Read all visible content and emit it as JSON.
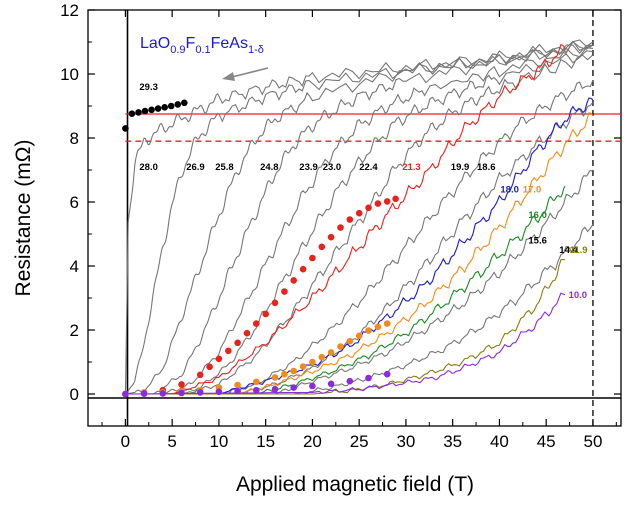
{
  "chart_data": {
    "type": "line",
    "xlabel": "Applied magnetic field (T)",
    "ylabel": "Resistance (mΩ)",
    "xlim": [
      -4,
      53
    ],
    "ylim": [
      -1,
      12
    ],
    "x_ticks": [
      0,
      5,
      10,
      15,
      20,
      25,
      30,
      35,
      40,
      45,
      50
    ],
    "y_ticks": [
      0,
      2,
      4,
      6,
      8,
      10,
      12
    ],
    "sample_label": {
      "main": "LaO",
      "s1": "0.9",
      "mid1": "F",
      "s2": "0.1",
      "mid2": "FeAs",
      "s3": "1-δ"
    },
    "arrow_direction": "left",
    "reference_lines": [
      {
        "kind": "horizontal",
        "y": 8.75,
        "color": "#e8231e",
        "style": "solid"
      },
      {
        "kind": "horizontal",
        "y": 7.9,
        "color": "#e8231e",
        "style": "dashed"
      },
      {
        "kind": "vertical",
        "x": 50,
        "color": "#000000",
        "style": "dashed"
      }
    ],
    "series": [
      {
        "name": "28.0",
        "color": "#777777",
        "label_x": 1.5,
        "label_y": 7.0,
        "x": [
          0,
          0.3,
          1,
          2,
          4,
          6,
          8,
          10,
          15,
          20,
          30,
          40,
          50
        ],
        "y": [
          0,
          5.4,
          7.2,
          7.9,
          8.3,
          8.6,
          8.9,
          9.2,
          9.6,
          9.9,
          10.2,
          10.5,
          11.0
        ]
      },
      {
        "name": "26.9",
        "color": "#777777",
        "label_x": 6.5,
        "label_y": 7.0,
        "x": [
          0,
          1,
          2,
          3,
          4,
          5,
          6,
          7,
          8,
          10,
          15,
          20,
          30,
          40,
          50
        ],
        "y": [
          0,
          0.4,
          1.6,
          3.1,
          4.6,
          5.9,
          6.9,
          7.6,
          8.1,
          8.7,
          9.3,
          9.7,
          10.1,
          10.4,
          10.9
        ]
      },
      {
        "name": "25.8",
        "color": "#777777",
        "label_x": 9.6,
        "label_y": 7.0,
        "x": [
          0,
          2,
          4,
          6,
          8,
          10,
          12,
          14,
          16,
          20,
          30,
          40,
          50
        ],
        "y": [
          0,
          0.1,
          0.8,
          2.4,
          4.0,
          5.6,
          7.0,
          8.0,
          8.6,
          9.3,
          10.1,
          10.5,
          10.9
        ]
      },
      {
        "name": "24.8",
        "color": "#777777",
        "label_x": 14.4,
        "label_y": 7.0,
        "x": [
          0,
          3,
          6,
          8,
          10,
          12,
          14,
          16,
          18,
          20,
          22,
          25,
          30,
          40,
          50
        ],
        "y": [
          0,
          0,
          0.6,
          1.7,
          3.0,
          4.4,
          5.7,
          6.9,
          7.8,
          8.4,
          8.8,
          9.3,
          9.8,
          10.4,
          10.9
        ]
      },
      {
        "name": "23.9",
        "color": "#777777",
        "label_x": 18.6,
        "label_y": 7.0,
        "x": [
          0,
          4,
          7,
          10,
          13,
          16,
          19,
          22,
          25,
          28,
          32,
          40,
          50
        ],
        "y": [
          0,
          0,
          0.3,
          1.3,
          2.9,
          4.6,
          6.2,
          7.5,
          8.4,
          9.0,
          9.5,
          10.1,
          10.8
        ]
      },
      {
        "name": "23.0",
        "color": "#777777",
        "label_x": 21.1,
        "label_y": 7.0,
        "x": [
          0,
          5,
          8,
          11,
          14,
          17,
          20,
          23,
          26,
          29,
          32,
          36,
          40,
          50
        ],
        "y": [
          0,
          0,
          0.2,
          0.9,
          2.1,
          3.6,
          5.1,
          6.5,
          7.6,
          8.5,
          9.0,
          9.5,
          9.9,
          10.7
        ]
      },
      {
        "name": "22.4",
        "color": "#777777",
        "label_x": 25.0,
        "label_y": 7.0,
        "x": [
          0,
          6,
          10,
          14,
          18,
          22,
          26,
          29,
          32,
          35,
          38,
          42,
          50
        ],
        "y": [
          0,
          0,
          0.3,
          1.2,
          2.6,
          4.2,
          5.8,
          7.1,
          8.1,
          8.8,
          9.3,
          9.8,
          10.6
        ]
      },
      {
        "name": "21.3",
        "color": "#e8231e",
        "label_x": 29.6,
        "label_y": 7.0,
        "x": [
          0,
          5,
          10,
          15,
          20,
          25,
          28,
          32,
          36,
          40,
          44,
          47
        ],
        "y": [
          0,
          0,
          0.5,
          1.6,
          3.0,
          4.6,
          5.6,
          6.8,
          8.2,
          9.3,
          10.1,
          10.8
        ]
      },
      {
        "name": "19.9",
        "color": "#777777",
        "label_x": 34.8,
        "label_y": 7.0,
        "x": [
          0,
          10,
          14,
          18,
          22,
          26,
          30,
          34,
          38,
          42,
          46,
          50
        ],
        "y": [
          0,
          0,
          0.3,
          1.0,
          2.0,
          3.2,
          4.6,
          6.0,
          7.3,
          8.4,
          9.2,
          9.8
        ]
      },
      {
        "name": "18.6",
        "color": "#777777",
        "label_x": 37.6,
        "label_y": 7.0,
        "x": [
          0,
          12,
          16,
          20,
          24,
          28,
          32,
          36,
          40,
          44,
          48,
          50
        ],
        "y": [
          0,
          0,
          0.3,
          0.8,
          1.6,
          2.7,
          4.0,
          5.4,
          6.7,
          7.8,
          8.7,
          9.1
        ]
      },
      {
        "name": "18.0",
        "color": "#1a1ad6",
        "label_x": 40.1,
        "label_y": 6.3,
        "x": [
          0,
          10,
          15,
          20,
          24,
          28,
          32,
          36,
          40,
          44,
          47,
          50
        ],
        "y": [
          0,
          0,
          0.4,
          0.9,
          1.5,
          2.4,
          3.4,
          4.7,
          6.0,
          7.6,
          8.6,
          9.2
        ]
      },
      {
        "name": "17.0",
        "color": "#f28a1c",
        "label_x": 42.5,
        "label_y": 6.3,
        "x": [
          0,
          12,
          16,
          20,
          24,
          28,
          32,
          36,
          40,
          44,
          47,
          50
        ],
        "y": [
          0,
          0,
          0.3,
          0.7,
          1.2,
          1.9,
          2.8,
          3.9,
          5.2,
          6.7,
          7.8,
          8.7
        ]
      },
      {
        "name": "16.0",
        "color": "#1c8a22",
        "label_x": 43.1,
        "label_y": 5.5,
        "x": [
          0,
          14,
          18,
          22,
          26,
          30,
          34,
          38,
          42,
          45,
          47
        ],
        "y": [
          0,
          0,
          0.3,
          0.7,
          1.2,
          1.9,
          2.8,
          3.8,
          4.9,
          5.8,
          6.5
        ]
      },
      {
        "name": "15.6",
        "color": "#777777",
        "label_x": 43.1,
        "label_y": 4.7,
        "x": [
          0,
          16,
          20,
          24,
          28,
          32,
          36,
          40,
          44,
          48,
          50
        ],
        "y": [
          0,
          0,
          0.4,
          0.8,
          1.3,
          2.0,
          2.8,
          3.8,
          5.0,
          6.3,
          7.0
        ]
      },
      {
        "name": "14.4",
        "color": "#777777",
        "label_x": 46.4,
        "label_y": 4.4,
        "x": [
          0,
          18,
          22,
          26,
          30,
          34,
          38,
          42,
          46,
          50
        ],
        "y": [
          0,
          0,
          0.2,
          0.5,
          0.9,
          1.4,
          2.1,
          3.0,
          4.1,
          5.3
        ]
      },
      {
        "name": "11.9",
        "color": "#8a7d10",
        "label_x": 47.5,
        "label_y": 4.4,
        "x": [
          0,
          20,
          24,
          28,
          32,
          36,
          40,
          44,
          47
        ],
        "y": [
          0,
          0,
          0.1,
          0.3,
          0.6,
          1.0,
          1.6,
          2.8,
          4.2
        ]
      },
      {
        "name": "10.0",
        "color": "#8a2be2",
        "label_x": 47.4,
        "label_y": 3.0,
        "x": [
          0,
          20,
          25,
          30,
          33,
          36,
          40,
          44,
          47
        ],
        "y": [
          0,
          0.05,
          0.15,
          0.35,
          0.5,
          0.8,
          1.3,
          2.2,
          3.1
        ]
      }
    ],
    "marker_series": [
      {
        "name": "29.3",
        "color": "#000000",
        "label_x": 1.5,
        "label_y": 9.5,
        "x": [
          0,
          0.7,
          1.4,
          2.1,
          2.8,
          3.5,
          4.2,
          4.9,
          5.6,
          6.3
        ],
        "y": [
          8.3,
          8.76,
          8.8,
          8.84,
          8.88,
          8.92,
          8.96,
          9.0,
          9.05,
          9.1
        ]
      },
      {
        "name": "21.3",
        "color": "#e8231e",
        "x": [
          0,
          2,
          4,
          6,
          8,
          9,
          10,
          11,
          12,
          13,
          14,
          15,
          16,
          17,
          18,
          19,
          20,
          21,
          22,
          23,
          24,
          25,
          26,
          27,
          28,
          28.9
        ],
        "y": [
          0,
          0.04,
          0.12,
          0.3,
          0.6,
          0.85,
          1.1,
          1.35,
          1.6,
          1.9,
          2.2,
          2.5,
          2.85,
          3.2,
          3.55,
          3.9,
          4.25,
          4.6,
          4.9,
          5.2,
          5.45,
          5.65,
          5.82,
          5.95,
          6.02,
          6.1
        ]
      },
      {
        "name": "17.0",
        "color": "#f28a1c",
        "x": [
          0,
          2,
          4,
          6,
          8,
          10,
          12,
          14,
          16,
          17,
          18,
          19,
          20,
          21,
          22,
          23,
          24,
          25,
          26,
          27,
          28
        ],
        "y": [
          0,
          0.02,
          0.05,
          0.08,
          0.12,
          0.2,
          0.28,
          0.38,
          0.52,
          0.62,
          0.72,
          0.86,
          1.0,
          1.15,
          1.3,
          1.48,
          1.65,
          1.82,
          1.98,
          2.1,
          2.2
        ]
      },
      {
        "name": "10.0",
        "color": "#8a2be2",
        "x": [
          0,
          2,
          4,
          6,
          8,
          10,
          12,
          14,
          16,
          18,
          20,
          22,
          24,
          26,
          28
        ],
        "y": [
          0,
          0.01,
          0.02,
          0.03,
          0.05,
          0.07,
          0.09,
          0.12,
          0.15,
          0.2,
          0.25,
          0.32,
          0.4,
          0.5,
          0.62
        ]
      }
    ]
  }
}
